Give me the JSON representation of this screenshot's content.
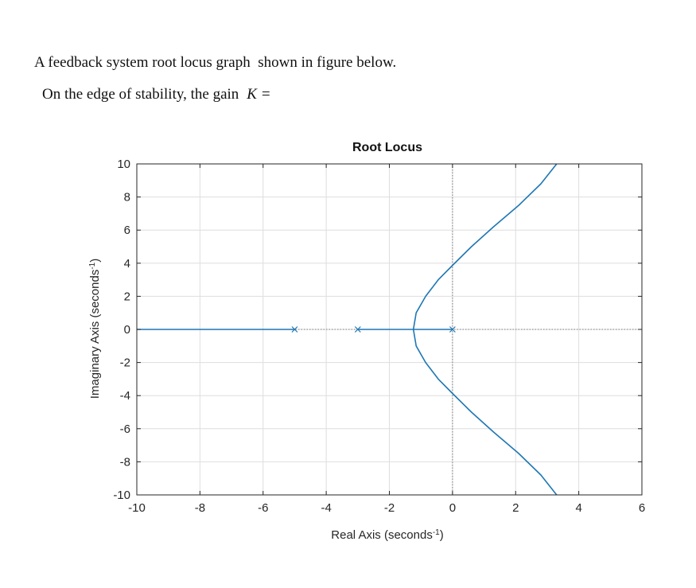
{
  "question": {
    "line1": "A feedback system root locus graph  shown in figure below.",
    "line2_prefix": "On the edge of stability, the gain",
    "line2_var": "K =",
    "line2_suffix": ""
  },
  "chart_data": {
    "type": "line",
    "title": "Root Locus",
    "xlabel": "Real Axis (seconds",
    "xlabel_sup": "-1",
    "xlabel_suffix": ")",
    "ylabel": "Imaginary Axis (seconds",
    "ylabel_sup": "-1",
    "ylabel_suffix": ")",
    "xlim": [
      -10,
      6
    ],
    "ylim": [
      -10,
      10
    ],
    "xticks": [
      -10,
      -8,
      -6,
      -4,
      -2,
      0,
      2,
      4,
      6
    ],
    "yticks": [
      -10,
      -8,
      -6,
      -4,
      -2,
      0,
      2,
      4,
      6,
      8,
      10
    ],
    "grid": true,
    "line_color": "#1f77b4",
    "poles": [
      {
        "x": -5,
        "y": 0
      },
      {
        "x": -3,
        "y": 0
      },
      {
        "x": 0,
        "y": 0
      }
    ],
    "branches": [
      {
        "name": "",
        "points": [
          [
            -5,
            0
          ],
          [
            -10,
            0
          ]
        ]
      },
      {
        "name": "",
        "points": [
          [
            -3,
            0
          ],
          [
            -1.24,
            0
          ]
        ]
      },
      {
        "name": "",
        "points": [
          [
            0,
            0
          ],
          [
            -1.24,
            0
          ]
        ]
      },
      {
        "name": "",
        "points": [
          [
            -1.24,
            0
          ],
          [
            -1.15,
            1
          ],
          [
            -0.85,
            2
          ],
          [
            -0.45,
            3
          ],
          [
            0,
            3.87
          ],
          [
            0.6,
            5
          ],
          [
            1.3,
            6.2
          ],
          [
            2.1,
            7.5
          ],
          [
            2.8,
            8.8
          ],
          [
            3.3,
            10
          ]
        ]
      },
      {
        "name": "",
        "points": [
          [
            -1.24,
            0
          ],
          [
            -1.15,
            -1
          ],
          [
            -0.85,
            -2
          ],
          [
            -0.45,
            -3
          ],
          [
            0,
            -3.87
          ],
          [
            0.6,
            -5
          ],
          [
            1.3,
            -6.2
          ],
          [
            2.1,
            -7.5
          ],
          [
            2.8,
            -8.8
          ],
          [
            3.3,
            -10
          ]
        ]
      }
    ],
    "reference_lines": [
      {
        "orientation": "vertical",
        "value": 0,
        "style": "dotted"
      },
      {
        "orientation": "horizontal",
        "value": 0,
        "style": "dotted"
      }
    ]
  }
}
